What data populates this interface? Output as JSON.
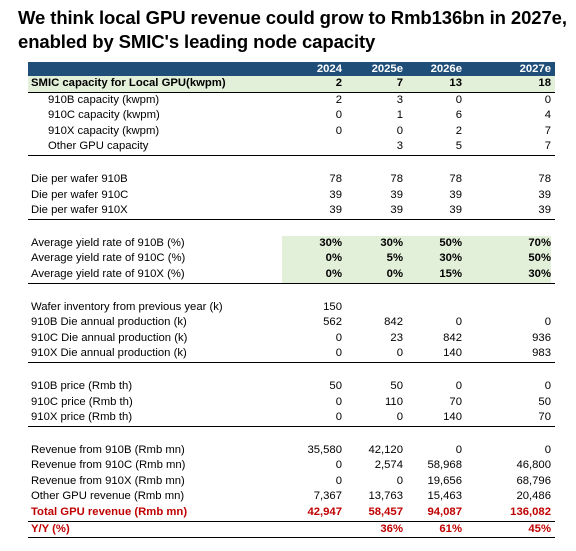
{
  "title": "We think local GPU revenue could grow to Rmb136bn in 2027e, enabled by SMIC's leading node capacity",
  "columns": [
    "2024",
    "2025e",
    "2026e",
    "2027e"
  ],
  "groups": [
    {
      "rows": [
        {
          "label": "SMIC capacity for Local GPU(kwpm)",
          "values": [
            "2",
            "7",
            "13",
            "18"
          ],
          "style": "bold"
        },
        {
          "label": "910B capacity (kwpm)",
          "values": [
            "2",
            "3",
            "0",
            "0"
          ],
          "style": "indent"
        },
        {
          "label": "910C capacity (kwpm)",
          "values": [
            "0",
            "1",
            "6",
            "4"
          ],
          "style": "indent"
        },
        {
          "label": "910X capacity (kwpm)",
          "values": [
            "0",
            "0",
            "2",
            "7"
          ],
          "style": "indent"
        },
        {
          "label": "Other GPU capacity",
          "values": [
            "",
            "3",
            "5",
            "7"
          ],
          "style": "indent"
        }
      ]
    },
    {
      "rows": [
        {
          "label": "Die per wafer 910B",
          "values": [
            "78",
            "78",
            "78",
            "78"
          ]
        },
        {
          "label": "Die per wafer 910C",
          "values": [
            "39",
            "39",
            "39",
            "39"
          ]
        },
        {
          "label": "Die per wafer 910X",
          "values": [
            "39",
            "39",
            "39",
            "39"
          ]
        }
      ]
    },
    {
      "rows": [
        {
          "label": "Average yield rate of 910B (%)",
          "values": [
            "30%",
            "30%",
            "50%",
            "70%"
          ],
          "style": "yield"
        },
        {
          "label": "Average yield rate of 910C (%)",
          "values": [
            "0%",
            "5%",
            "30%",
            "50%"
          ],
          "style": "yield"
        },
        {
          "label": "Average yield rate of 910X (%)",
          "values": [
            "0%",
            "0%",
            "15%",
            "30%"
          ],
          "style": "yield"
        }
      ]
    },
    {
      "rows": [
        {
          "label": "Wafer inventory from previous year (k)",
          "values": [
            "150",
            "",
            "",
            ""
          ]
        },
        {
          "label": "910B Die annual production (k)",
          "values": [
            "562",
            "842",
            "0",
            "0"
          ]
        },
        {
          "label": "910C Die annual production (k)",
          "values": [
            "0",
            "23",
            "842",
            "936"
          ]
        },
        {
          "label": "910X Die annual production (k)",
          "values": [
            "0",
            "0",
            "140",
            "983"
          ]
        }
      ]
    },
    {
      "rows": [
        {
          "label": "910B price (Rmb th)",
          "values": [
            "50",
            "50",
            "0",
            "0"
          ]
        },
        {
          "label": "910C price (Rmb th)",
          "values": [
            "0",
            "110",
            "70",
            "50"
          ]
        },
        {
          "label": "910X price (Rmb th)",
          "values": [
            "0",
            "0",
            "140",
            "70"
          ]
        }
      ]
    },
    {
      "rows": [
        {
          "label": "Revenue from 910B (Rmb mn)",
          "values": [
            "35,580",
            "42,120",
            "0",
            "0"
          ]
        },
        {
          "label": "Revenue from 910C (Rmb mn)",
          "values": [
            "0",
            "2,574",
            "58,968",
            "46,800"
          ]
        },
        {
          "label": "Revenue from 910X (Rmb mn)",
          "values": [
            "0",
            "0",
            "19,656",
            "68,796"
          ]
        },
        {
          "label": "Other GPU revenue (Rmb mn)",
          "values": [
            "7,367",
            "13,763",
            "15,463",
            "20,486"
          ]
        },
        {
          "label": "Total GPU revenue (Rmb mn)",
          "values": [
            "42,947",
            "58,457",
            "94,087",
            "136,082"
          ],
          "style": "red"
        },
        {
          "label": "Y/Y (%)",
          "values": [
            "",
            "36%",
            "61%",
            "45%"
          ],
          "style": "red"
        }
      ]
    }
  ],
  "colors": {
    "header_bg": "#1f4e79",
    "highlight_bg": "#e2efd9",
    "total_text": "#c00000"
  }
}
